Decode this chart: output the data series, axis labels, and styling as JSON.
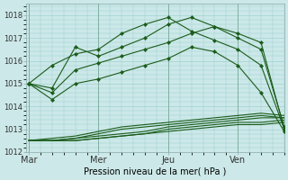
{
  "title": "",
  "xlabel": "Pression niveau de la mer( hPa )",
  "ylabel": "",
  "bg_color": "#cce8e8",
  "plot_bg_color": "#cce8e8",
  "grid_color": "#99cccc",
  "line_color": "#1a5c1a",
  "marker_color": "#1a5c1a",
  "ylim": [
    1012.0,
    1018.5
  ],
  "yticks": [
    1012,
    1013,
    1014,
    1015,
    1016,
    1017,
    1018
  ],
  "xtick_labels": [
    "Mar",
    "Mer",
    "Jeu",
    "Ven"
  ],
  "xtick_positions": [
    0.0,
    3.0,
    6.0,
    9.0
  ],
  "xlim": [
    -0.1,
    11.0
  ],
  "series_marker": [
    [
      1015.0,
      1015.8,
      1016.3,
      1016.5,
      1017.2,
      1017.6,
      1017.9,
      1017.3,
      1016.9,
      1016.5,
      1015.8,
      1013.0
    ],
    [
      1015.0,
      1014.8,
      1016.6,
      1016.2,
      1016.6,
      1017.0,
      1017.6,
      1017.9,
      1017.5,
      1017.0,
      1016.5,
      1013.1
    ],
    [
      1015.0,
      1014.6,
      1015.6,
      1015.9,
      1016.2,
      1016.5,
      1016.8,
      1017.2,
      1017.5,
      1017.2,
      1016.8,
      1013.0
    ],
    [
      1015.0,
      1014.3,
      1015.0,
      1015.2,
      1015.5,
      1015.8,
      1016.1,
      1016.6,
      1016.4,
      1015.8,
      1014.6,
      1012.9
    ]
  ],
  "series_plain": [
    [
      1012.5,
      1012.5,
      1012.5,
      1012.6,
      1012.7,
      1012.8,
      1012.9,
      1013.0,
      1013.1,
      1013.2,
      1013.2,
      1013.3
    ],
    [
      1012.5,
      1012.5,
      1012.5,
      1012.6,
      1012.7,
      1012.8,
      1013.0,
      1013.1,
      1013.2,
      1013.3,
      1013.3,
      1013.4
    ],
    [
      1012.5,
      1012.5,
      1012.6,
      1012.7,
      1012.8,
      1012.9,
      1013.1,
      1013.2,
      1013.3,
      1013.4,
      1013.5,
      1013.5
    ],
    [
      1012.5,
      1012.5,
      1012.6,
      1012.8,
      1013.0,
      1013.1,
      1013.2,
      1013.3,
      1013.4,
      1013.5,
      1013.6,
      1013.5
    ],
    [
      1012.5,
      1012.6,
      1012.7,
      1012.9,
      1013.1,
      1013.2,
      1013.3,
      1013.4,
      1013.5,
      1013.6,
      1013.7,
      1013.6
    ]
  ],
  "n_points": 12
}
